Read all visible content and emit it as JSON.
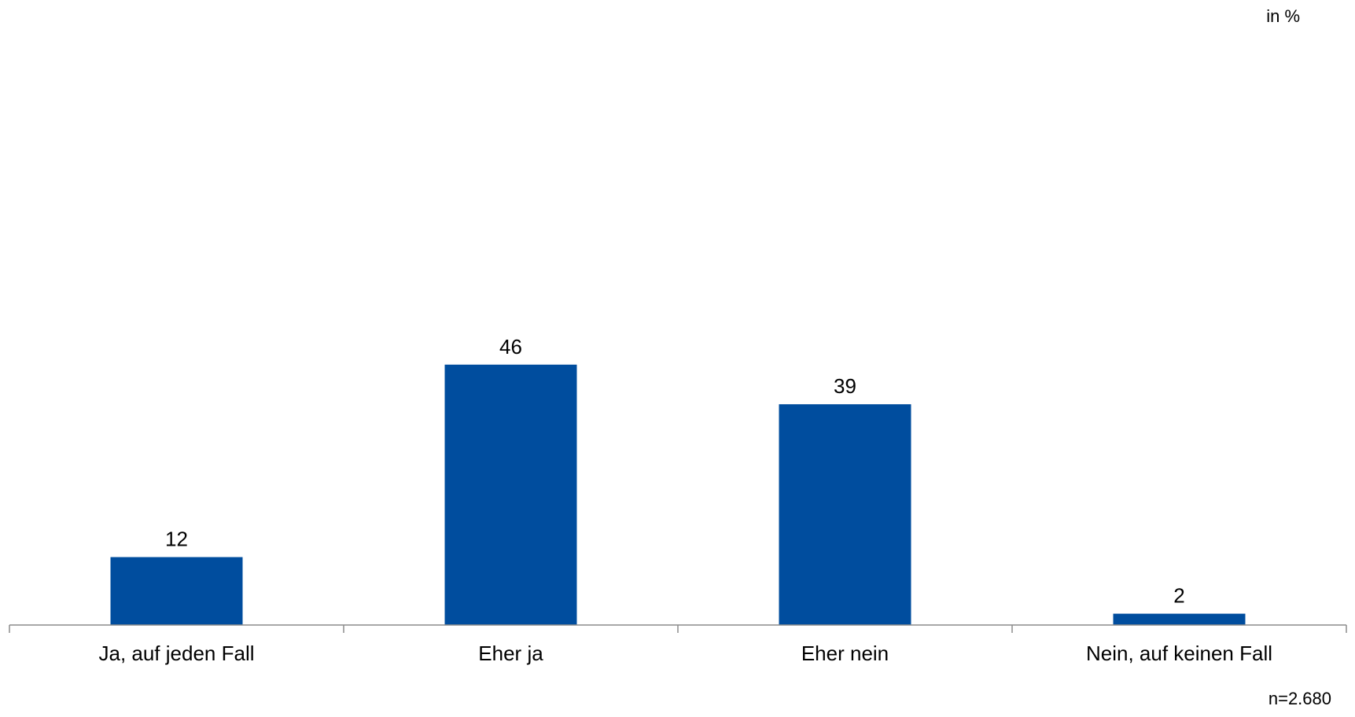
{
  "chart_data": {
    "type": "bar",
    "unit_label": "in %",
    "categories": [
      "Ja, auf jeden Fall",
      "Eher ja",
      "Eher nein",
      "Nein, auf keinen Fall"
    ],
    "values": [
      12,
      46,
      39,
      2
    ],
    "value_labels": [
      "12",
      "46",
      "39",
      "2"
    ],
    "sample_note": "n=2.680",
    "ylim": [
      0,
      100
    ],
    "colors": {
      "bar": "#004d9e",
      "axis": "#8c8c8c"
    },
    "grid": false,
    "legend": "none"
  }
}
